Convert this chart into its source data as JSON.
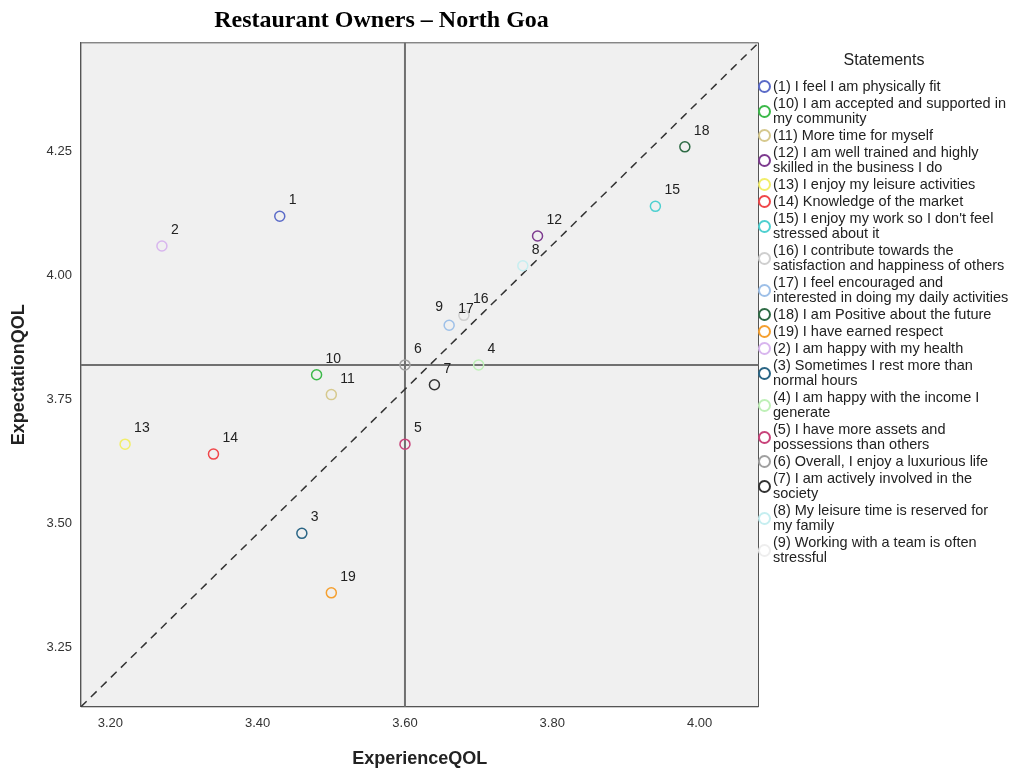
{
  "chart_data": {
    "type": "scatter",
    "title": "Restaurant Owners – North Goa",
    "xlabel": "ExperienceQOL",
    "ylabel": "ExpectationQOL",
    "legend_title": "Statements",
    "legend": "right",
    "marker": "circle",
    "grid": false,
    "xlim": [
      3.16,
      4.08
    ],
    "xticks": [
      {
        "value": 3.2,
        "label": "3.20"
      },
      {
        "value": 3.4,
        "label": "3.40"
      },
      {
        "value": 3.6,
        "label": "3.60"
      },
      {
        "value": 3.8,
        "label": "3.80"
      },
      {
        "value": 4.0,
        "label": "4.00"
      }
    ],
    "ylim": [
      3.13,
      4.47
    ],
    "yticks": [
      {
        "value": 3.25,
        "label": "3.25"
      },
      {
        "value": 3.5,
        "label": "3.50"
      },
      {
        "value": 3.75,
        "label": "3.75"
      },
      {
        "value": 4.0,
        "label": "4.00"
      },
      {
        "value": 4.25,
        "label": "4.25"
      }
    ],
    "ref_lines": [
      {
        "axis": "x",
        "value": 3.6,
        "color": "#707070"
      },
      {
        "axis": "y",
        "value": 3.82,
        "color": "#707070"
      }
    ],
    "series": [
      {
        "name": "(1) I feel I am physically fit",
        "color": "#5b6bc8",
        "x": [
          3.43
        ],
        "values": [
          4.12
        ]
      },
      {
        "name": "(10) I am accepted and supported in my community",
        "color": "#3cb94a",
        "x": [
          3.48
        ],
        "values": [
          3.8
        ]
      },
      {
        "name": "(11) More time for myself",
        "color": "#d6c98e",
        "x": [
          3.5
        ],
        "values": [
          3.76
        ]
      },
      {
        "name": "(12) I am well trained and highly skilled in the business I do",
        "color": "#7d3b8f",
        "x": [
          3.78
        ],
        "values": [
          4.08
        ]
      },
      {
        "name": "(13) I enjoy my leisure activities",
        "color": "#f2ee6a",
        "x": [
          3.22
        ],
        "values": [
          3.66
        ]
      },
      {
        "name": "(14) Knowledge of the market",
        "color": "#f0474a",
        "x": [
          3.34
        ],
        "values": [
          3.64
        ]
      },
      {
        "name": "(15) I enjoy my work so I don't feel stressed about it",
        "color": "#4fd0d0",
        "x": [
          3.94
        ],
        "values": [
          4.14
        ]
      },
      {
        "name": "(16) I contribute towards the satisfaction and happiness of others",
        "color": "#cfcfcf",
        "x": [
          3.68
        ],
        "values": [
          3.92
        ]
      },
      {
        "name": "(17) I feel encouraged and interested in doing my daily activities",
        "color": "#9ec0e8",
        "x": [
          3.66
        ],
        "values": [
          3.9
        ]
      },
      {
        "name": "(18) I am Positive about the future",
        "color": "#2e6b45",
        "x": [
          3.98
        ],
        "values": [
          4.26
        ]
      },
      {
        "name": "(19) I have earned respect",
        "color": "#f5a030",
        "x": [
          3.5
        ],
        "values": [
          3.36
        ]
      },
      {
        "name": "(2) I am happy with my health",
        "color": "#d8b6ee",
        "x": [
          3.27
        ],
        "values": [
          4.06
        ]
      },
      {
        "name": "(3) Sometimes I rest more than normal hours",
        "color": "#2a6585",
        "x": [
          3.46
        ],
        "values": [
          3.48
        ]
      },
      {
        "name": "(4) I am happy with the income I generate",
        "color": "#bff0b8",
        "x": [
          3.7
        ],
        "values": [
          3.82
        ]
      },
      {
        "name": "(5) I have more assets and possessions than others",
        "color": "#c8437a",
        "x": [
          3.6
        ],
        "values": [
          3.66
        ]
      },
      {
        "name": "(6) Overall, I enjoy a luxurious life",
        "color": "#a0a0a0",
        "x": [
          3.6
        ],
        "values": [
          3.82
        ]
      },
      {
        "name": "(7) I am actively involved in the society",
        "color": "#333333",
        "x": [
          3.64
        ],
        "values": [
          3.78
        ]
      },
      {
        "name": "(8) My leisure time is reserved for my family",
        "color": "#c6eef0",
        "x": [
          3.76
        ],
        "values": [
          4.02
        ]
      },
      {
        "name": "(9) Working with a team is often stressful",
        "color": "#eeeeee",
        "x": [
          null
        ],
        "values": [
          null
        ]
      },
      {
        "type": "line",
        "color": "#333333",
        "line_style": "dashed",
        "marker": "none",
        "x": [
          3.16,
          4.08
        ],
        "values": [
          3.13,
          4.47
        ]
      }
    ],
    "annotations": [
      {
        "text": "1",
        "x": 3.43,
        "y": 4.12
      },
      {
        "text": "10",
        "x": 3.48,
        "y": 3.8
      },
      {
        "text": "11",
        "x": 3.5,
        "y": 3.76
      },
      {
        "text": "12",
        "x": 3.78,
        "y": 4.08
      },
      {
        "text": "13",
        "x": 3.22,
        "y": 3.66
      },
      {
        "text": "14",
        "x": 3.34,
        "y": 3.64
      },
      {
        "text": "15",
        "x": 3.94,
        "y": 4.14
      },
      {
        "text": "16",
        "x": 3.68,
        "y": 3.92
      },
      {
        "text": "17",
        "x": 3.66,
        "y": 3.9
      },
      {
        "text": "18",
        "x": 3.98,
        "y": 4.26
      },
      {
        "text": "19",
        "x": 3.5,
        "y": 3.36
      },
      {
        "text": "2",
        "x": 3.27,
        "y": 4.06
      },
      {
        "text": "3",
        "x": 3.46,
        "y": 3.48
      },
      {
        "text": "4",
        "x": 3.7,
        "y": 3.82
      },
      {
        "text": "5",
        "x": 3.6,
        "y": 3.66
      },
      {
        "text": "6",
        "x": 3.6,
        "y": 3.82
      },
      {
        "text": "7",
        "x": 3.64,
        "y": 3.78
      },
      {
        "text": "8",
        "x": 3.76,
        "y": 4.02
      },
      {
        "text": "9",
        "x": 3.66,
        "y": 3.9
      }
    ]
  }
}
